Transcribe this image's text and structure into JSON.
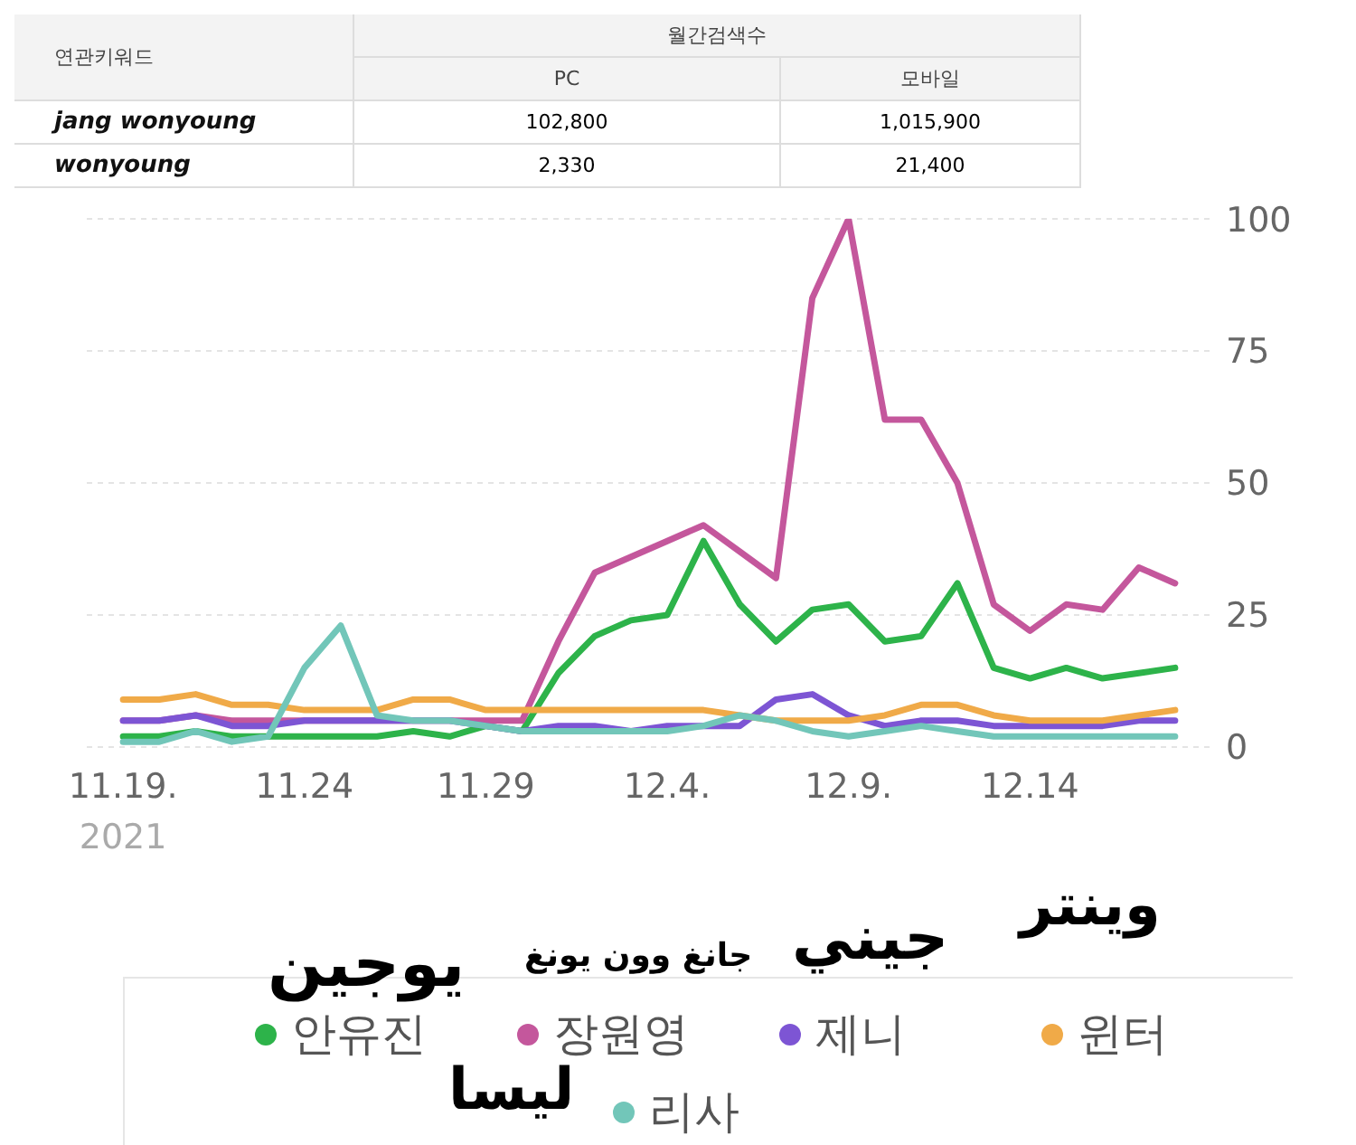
{
  "chart_data": {
    "type": "line",
    "annotations": [
      "연관키워드",
      "월간검색수",
      "PC",
      "모바일",
      "jang wonyoung",
      "102,800",
      "1,015,900",
      "wonyoung",
      "2,330",
      "21,400",
      "يوجين",
      "جانغ وون يونغ",
      "جيني",
      "وينتر",
      "ليسا"
    ],
    "x": [
      "2021-11-19",
      "2021-11-20",
      "2021-11-21",
      "2021-11-22",
      "2021-11-23",
      "2021-11-24",
      "2021-11-25",
      "2021-11-26",
      "2021-11-27",
      "2021-11-28",
      "2021-11-29",
      "2021-11-30",
      "2021-12-01",
      "2021-12-02",
      "2021-12-03",
      "2021-12-04",
      "2021-12-05",
      "2021-12-06",
      "2021-12-07",
      "2021-12-08",
      "2021-12-09",
      "2021-12-10",
      "2021-12-11",
      "2021-12-12",
      "2021-12-13",
      "2021-12-14",
      "2021-12-15",
      "2021-12-16",
      "2021-12-17",
      "2021-12-18"
    ],
    "series": [
      {
        "name": "안유진",
        "color": "#2db34a",
        "values": [
          2,
          2,
          3,
          2,
          2,
          2,
          2,
          2,
          3,
          2,
          4,
          3,
          14,
          21,
          24,
          25,
          39,
          27,
          20,
          26,
          27,
          20,
          21,
          31,
          15,
          13,
          15,
          13,
          14,
          15
        ]
      },
      {
        "name": "장원영",
        "color": "#c4579c",
        "values": [
          5,
          5,
          6,
          5,
          5,
          5,
          5,
          5,
          5,
          5,
          5,
          5,
          20,
          33,
          36,
          39,
          42,
          37,
          32,
          85,
          100,
          62,
          62,
          50,
          27,
          22,
          27,
          26,
          34,
          31
        ]
      },
      {
        "name": "제니",
        "color": "#7d55d4",
        "values": [
          5,
          5,
          6,
          4,
          4,
          5,
          5,
          5,
          5,
          5,
          4,
          3,
          4,
          4,
          3,
          4,
          4,
          4,
          9,
          10,
          6,
          4,
          5,
          5,
          4,
          4,
          4,
          4,
          5,
          5
        ]
      },
      {
        "name": "윈터",
        "color": "#f0aa48",
        "values": [
          9,
          9,
          10,
          8,
          8,
          7,
          7,
          7,
          9,
          9,
          7,
          7,
          7,
          7,
          7,
          7,
          7,
          6,
          5,
          5,
          5,
          6,
          8,
          8,
          6,
          5,
          5,
          5,
          6,
          7
        ]
      },
      {
        "name": "리사",
        "color": "#72c6b9",
        "values": [
          1,
          1,
          3,
          1,
          2,
          15,
          23,
          6,
          5,
          5,
          4,
          3,
          3,
          3,
          3,
          3,
          4,
          6,
          5,
          3,
          2,
          3,
          4,
          3,
          2,
          2,
          2,
          2,
          2,
          2
        ]
      }
    ],
    "xlim": [
      "2021-11-18",
      "2021-12-19"
    ],
    "xticks": [
      {
        "value": "2021-11-19",
        "label": "11.19.\n2021"
      },
      {
        "value": "2021-11-24",
        "label": "11.24"
      },
      {
        "value": "2021-11-29",
        "label": "11.29"
      },
      {
        "value": "2021-12-04",
        "label": "12.4."
      },
      {
        "value": "2021-12-09",
        "label": "12.9."
      },
      {
        "value": "2021-12-14",
        "label": "12.14"
      }
    ],
    "ylim": [
      0,
      100
    ],
    "yticks": [
      0,
      25,
      50,
      75,
      100
    ],
    "grid": "y",
    "legend": "bottom",
    "marker": "none",
    "line_style": "solid"
  }
}
